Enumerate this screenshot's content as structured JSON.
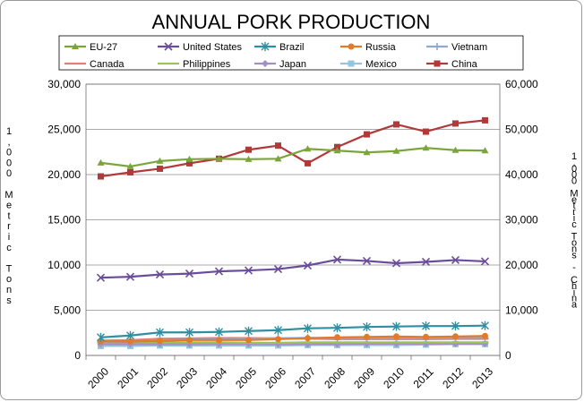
{
  "chart_data": {
    "type": "line",
    "title": "ANNUAL PORK PRODUCTION",
    "ylabel_left": "1,000 Metric Tons",
    "ylabel_right": "1,000 Metric Tons - China",
    "ylim_left": [
      0,
      30000
    ],
    "ylim_right": [
      0,
      60000
    ],
    "y_ticks_left": [
      "0",
      "5,000",
      "10,000",
      "15,000",
      "20,000",
      "25,000",
      "30,000"
    ],
    "y_ticks_right": [
      "0",
      "10,000",
      "20,000",
      "30,000",
      "40,000",
      "50,000",
      "60,000"
    ],
    "categories": [
      "2000",
      "2001",
      "2002",
      "2003",
      "2004",
      "2005",
      "2006",
      "2007",
      "2008",
      "2009",
      "2010",
      "2011",
      "2012",
      "2013"
    ],
    "grid": true,
    "legend_position": "top",
    "series": [
      {
        "name": "EU-27",
        "axis": "left",
        "color": "#7aa53b",
        "marker": "triangle",
        "values": [
          21300,
          20900,
          21500,
          21700,
          21750,
          21700,
          21750,
          22850,
          22650,
          22450,
          22600,
          22950,
          22700,
          22650
        ]
      },
      {
        "name": "United States",
        "axis": "left",
        "color": "#6a4d9a",
        "marker": "x",
        "values": [
          8600,
          8700,
          8950,
          9050,
          9300,
          9400,
          9550,
          9950,
          10600,
          10450,
          10200,
          10350,
          10550,
          10400
        ]
      },
      {
        "name": "Brazil",
        "axis": "left",
        "color": "#2f8fa0",
        "marker": "star",
        "values": [
          2000,
          2200,
          2550,
          2550,
          2600,
          2700,
          2800,
          3000,
          3050,
          3150,
          3200,
          3250,
          3250,
          3300
        ]
      },
      {
        "name": "Russia",
        "axis": "left",
        "color": "#e07b2a",
        "marker": "circle",
        "values": [
          1550,
          1550,
          1600,
          1700,
          1700,
          1700,
          1800,
          1900,
          2000,
          2050,
          2100,
          2050,
          2100,
          2150
        ]
      },
      {
        "name": "Vietnam",
        "axis": "left",
        "color": "#8fa8d2",
        "marker": "plus",
        "values": [
          1400,
          1500,
          1650,
          1750,
          1800,
          1850,
          1900,
          1950,
          1950,
          1950,
          1950,
          1950,
          1950,
          1950
        ]
      },
      {
        "name": "Canada",
        "axis": "left",
        "color": "#e07f72",
        "marker": "dash",
        "values": [
          1650,
          1700,
          1850,
          1880,
          1930,
          1920,
          1900,
          1850,
          1800,
          1800,
          1800,
          1800,
          1830,
          1830
        ]
      },
      {
        "name": "Philippines",
        "axis": "left",
        "color": "#9dc25a",
        "marker": "dash",
        "values": [
          1450,
          1450,
          1450,
          1450,
          1450,
          1400,
          1400,
          1450,
          1450,
          1450,
          1450,
          1450,
          1450,
          1450
        ]
      },
      {
        "name": "Japan",
        "axis": "left",
        "color": "#a48ec4",
        "marker": "diamond",
        "values": [
          1250,
          1250,
          1250,
          1250,
          1270,
          1270,
          1250,
          1250,
          1250,
          1300,
          1300,
          1300,
          1300,
          1300
        ]
      },
      {
        "name": "Mexico",
        "axis": "left",
        "color": "#92c5de",
        "marker": "square",
        "values": [
          1050,
          1050,
          1100,
          1100,
          1100,
          1100,
          1100,
          1150,
          1150,
          1150,
          1150,
          1200,
          1250,
          1250
        ]
      },
      {
        "name": "China",
        "axis": "right",
        "color": "#b03a3a",
        "marker": "square",
        "values": [
          39600,
          40500,
          41300,
          42500,
          43500,
          45500,
          46400,
          42500,
          46100,
          48900,
          51100,
          49500,
          51300,
          52000
        ]
      }
    ]
  }
}
